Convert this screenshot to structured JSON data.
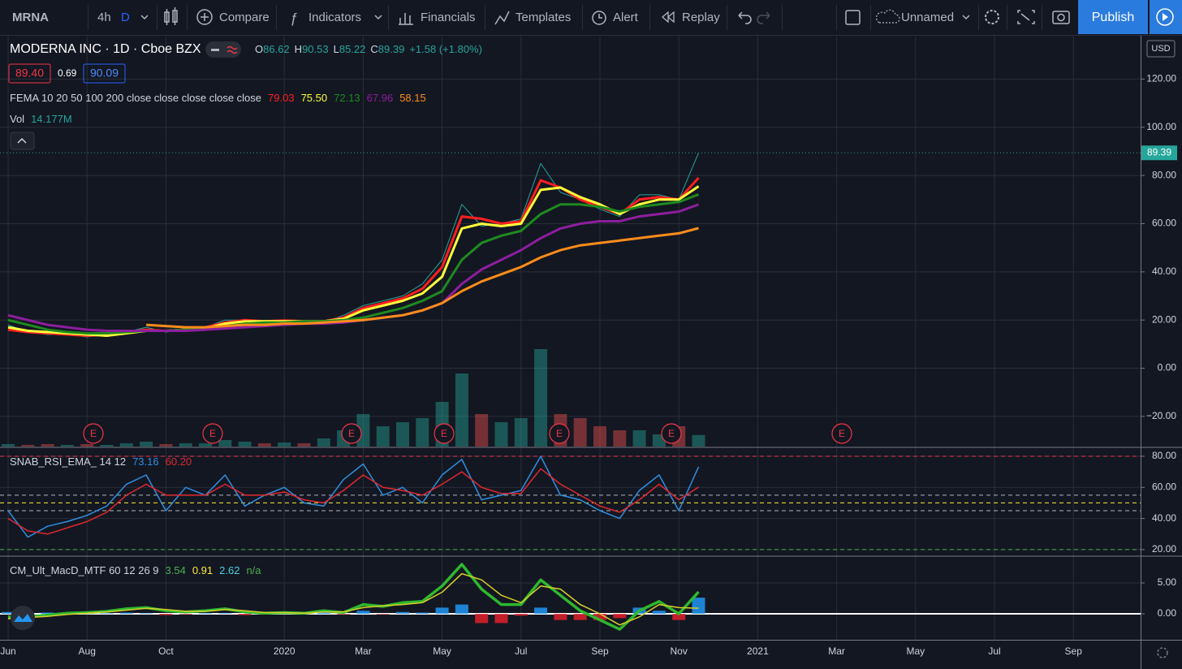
{
  "toolbar": {
    "symbol": "MRNA",
    "intervals": [
      "4h",
      "D"
    ],
    "buttons": [
      "Compare",
      "Indicators",
      "Financials",
      "Templates",
      "Alert",
      "Replay"
    ],
    "layout_name": "Unnamed",
    "publish": "Publish"
  },
  "legend": {
    "title": "MODERNA INC · 1D · Cboe BZX",
    "ohlc_keys": [
      "O",
      "H",
      "L",
      "C"
    ],
    "ohlc_values": [
      "86.62",
      "90.53",
      "85.22",
      "89.39"
    ],
    "change": "+1.58 (+1.80%)",
    "bid": "89.40",
    "spread": "0.69",
    "ask": "90.09",
    "ema_label": "FEMA 10 20 50 100 200 close close close close close",
    "ema_values": [
      "79.03",
      "75.50",
      "72.13",
      "67.96",
      "58.15"
    ],
    "vol_label": "Vol",
    "vol_value": "14.177M",
    "rsi_label": "SNAB_RSI_EMA_ 14 12",
    "rsi_values": [
      "73.16",
      "60.20"
    ],
    "macd_label": "CM_Ult_MacD_MTF 60 12 26 9",
    "macd_values": [
      "3.54",
      "0.91",
      "2.62",
      "n/a"
    ]
  },
  "currency": "USD",
  "earnings": [
    "E",
    "E",
    "E",
    "E",
    "E",
    "E",
    "E"
  ],
  "chart_data": [
    {
      "type": "line",
      "categories": [
        "Jun",
        null,
        null,
        null,
        "Aug",
        null,
        null,
        null,
        "Oct",
        null,
        null,
        null,
        null,
        null,
        "2020",
        null,
        null,
        null,
        "Mar",
        null,
        null,
        null,
        "May",
        null,
        null,
        null,
        "Jul",
        null,
        null,
        null,
        "Sep",
        null,
        null,
        null,
        "Nov",
        null,
        null,
        null,
        "2021",
        null,
        null,
        null,
        "Mar",
        null,
        null,
        null,
        "May",
        null,
        null,
        null,
        "Jul",
        null,
        null,
        null,
        "Sep"
      ],
      "ylim": [
        -32.5,
        138
      ],
      "yticks": [
        {
          "value": 120,
          "label": "120.00"
        },
        {
          "value": 100,
          "label": "100.00"
        },
        {
          "value": 80,
          "label": "80.00"
        },
        {
          "value": 60,
          "label": "60.00"
        },
        {
          "value": 40,
          "label": "40.00"
        },
        {
          "value": 20,
          "label": "20.00"
        },
        {
          "value": 0,
          "label": "0.00"
        },
        {
          "value": -20,
          "label": "−20.00"
        }
      ],
      "grid": true,
      "series": [
        {
          "color": "#26a69a",
          "width": 1,
          "values": [
            18,
            15,
            14,
            14,
            13,
            14,
            15,
            17,
            15,
            16,
            17,
            20,
            20,
            19,
            20,
            19,
            19,
            22,
            26,
            28,
            30,
            35,
            45,
            68,
            59,
            60,
            62,
            85,
            73,
            70,
            66,
            63,
            72,
            72,
            70,
            89.39,
            null,
            null,
            null,
            null,
            null,
            null,
            null,
            null,
            null,
            null,
            null,
            null,
            null,
            null,
            null,
            null,
            null,
            null,
            null
          ]
        },
        {
          "color": "#ff1f1f",
          "width": 3,
          "values": [
            16,
            15,
            14.5,
            14,
            13.5,
            14,
            15,
            16,
            15.5,
            16,
            17,
            19,
            20,
            19.5,
            19.8,
            19.5,
            19.5,
            21,
            25,
            27,
            29,
            33,
            42,
            63,
            62,
            60,
            61,
            78,
            75,
            70,
            67,
            64,
            70,
            71,
            70,
            79.03,
            null,
            null,
            null,
            null,
            null,
            null,
            null,
            null,
            null,
            null,
            null,
            null,
            null,
            null,
            null,
            null,
            null,
            null,
            null
          ]
        },
        {
          "color": "#ffff3b",
          "width": 3,
          "values": [
            17,
            15.5,
            15,
            14.5,
            14,
            13.5,
            14.5,
            15.5,
            15.5,
            16,
            16.5,
            18.5,
            19.5,
            19.5,
            19.5,
            19.5,
            19.5,
            20.5,
            24,
            26,
            28,
            31,
            38,
            58,
            60,
            59,
            60,
            74,
            75,
            71,
            68,
            64,
            68,
            70,
            70,
            75.5,
            null,
            null,
            null,
            null,
            null,
            null,
            null,
            null,
            null,
            null,
            null,
            null,
            null,
            null,
            null,
            null,
            null,
            null,
            null
          ]
        },
        {
          "color": "#1e8a1e",
          "width": 3,
          "values": [
            20,
            18,
            16,
            15,
            14.5,
            14.5,
            15,
            15.5,
            15.5,
            16,
            16.5,
            17.5,
            18.5,
            19,
            19,
            19.5,
            19.5,
            20,
            21,
            23,
            25,
            28,
            32,
            45,
            52,
            55,
            57,
            64,
            68,
            68,
            67,
            65,
            67,
            68,
            69,
            72.13,
            null,
            null,
            null,
            null,
            null,
            null,
            null,
            null,
            null,
            null,
            null,
            null,
            null,
            null,
            null,
            null,
            null,
            null,
            null
          ]
        },
        {
          "color": "#8e1e9e",
          "width": 3,
          "values": [
            22,
            20,
            18,
            17,
            16,
            15.5,
            15.5,
            15.5,
            15.5,
            15.5,
            16,
            16.5,
            17,
            17.5,
            18,
            18.5,
            18.5,
            19,
            20,
            21,
            22,
            24,
            27,
            35,
            41,
            45,
            49,
            54,
            58,
            60,
            61,
            61,
            63,
            64,
            65,
            67.96,
            null,
            null,
            null,
            null,
            null,
            null,
            null,
            null,
            null,
            null,
            null,
            null,
            null,
            null,
            null,
            null,
            null,
            null,
            null
          ]
        },
        {
          "color": "#ff8c1a",
          "width": 3,
          "values": [
            null,
            null,
            null,
            null,
            null,
            null,
            null,
            18,
            17.5,
            17,
            17,
            17.5,
            18,
            18,
            18.5,
            18.5,
            19,
            19.5,
            20,
            21,
            22,
            24,
            27,
            32,
            36,
            39,
            42,
            46,
            49,
            51,
            52,
            53,
            54,
            55,
            56,
            58.15,
            null,
            null,
            null,
            null,
            null,
            null,
            null,
            null,
            null,
            null,
            null,
            null,
            null,
            null,
            null,
            null,
            null,
            null,
            null
          ]
        }
      ]
    },
    {
      "type": "bar",
      "ylim": [
        0,
        220
      ],
      "up_color": "#26a69a",
      "down_color": "#ef5350",
      "values": [
        3,
        2,
        3,
        2,
        3,
        2,
        4,
        6,
        3,
        4,
        4,
        8,
        6,
        4,
        5,
        4,
        10,
        20,
        40,
        25,
        30,
        35,
        55,
        90,
        40,
        30,
        35,
        120,
        40,
        35,
        25,
        20,
        20,
        15,
        25,
        14.177,
        null,
        null,
        null,
        null,
        null,
        null,
        null,
        null,
        null,
        null,
        null,
        null,
        null,
        null,
        null,
        null,
        null,
        null,
        null
      ]
    },
    {
      "type": "line",
      "ylim": [
        16.3,
        85.2
      ],
      "yticks": [
        {
          "value": 80,
          "label": "80.00"
        },
        {
          "value": 60,
          "label": "60.00"
        },
        {
          "value": 40,
          "label": "40.00"
        },
        {
          "value": 20,
          "label": "20.00"
        }
      ],
      "grid": true,
      "hlines": [
        {
          "value": 80,
          "color": "#f23645"
        },
        {
          "value": 55,
          "color": "#b2b5be"
        },
        {
          "value": 50,
          "color": "#ffeb3b"
        },
        {
          "value": 45,
          "color": "#b2b5be"
        },
        {
          "value": 20,
          "color": "#4caf50"
        }
      ],
      "series": [
        {
          "color": "#2f8fe0",
          "width": 1.5,
          "values": [
            45,
            28,
            35,
            38,
            42,
            48,
            62,
            68,
            45,
            60,
            55,
            68,
            48,
            55,
            60,
            50,
            48,
            65,
            75,
            55,
            60,
            50,
            68,
            78,
            52,
            55,
            58,
            80,
            55,
            52,
            45,
            40,
            58,
            68,
            45,
            73.16,
            null,
            null,
            null,
            null,
            null,
            null,
            null,
            null,
            null,
            null,
            null,
            null,
            null,
            null,
            null,
            null,
            null,
            null,
            null
          ]
        },
        {
          "color": "#e0282e",
          "width": 1.5,
          "values": [
            40,
            32,
            30,
            34,
            38,
            44,
            55,
            62,
            55,
            55,
            55,
            62,
            55,
            55,
            57,
            52,
            50,
            58,
            68,
            60,
            58,
            55,
            62,
            70,
            60,
            56,
            56,
            72,
            62,
            55,
            48,
            44,
            52,
            62,
            52,
            60.2,
            null,
            null,
            null,
            null,
            null,
            null,
            null,
            null,
            null,
            null,
            null,
            null,
            null,
            null,
            null,
            null,
            null,
            null,
            null
          ]
        }
      ]
    },
    {
      "type": "line",
      "ylim": [
        -4.2,
        9.2
      ],
      "yticks": [
        {
          "value": 5,
          "label": "5.00"
        },
        {
          "value": 0,
          "label": "0.00"
        }
      ],
      "grid": true,
      "hlines": [
        {
          "value": 0,
          "color": "#ffffff"
        }
      ],
      "histogram": {
        "up_color": "#2196f3",
        "down_color": "#e0202a",
        "values": [
          0.3,
          0.1,
          0.2,
          0.2,
          0.1,
          0.1,
          0.2,
          0.1,
          -0.2,
          -0.1,
          0.1,
          0.1,
          -0.2,
          -0.1,
          0,
          0,
          0.2,
          -0.1,
          0.5,
          -0.1,
          0.3,
          0.2,
          1,
          1.5,
          -1.5,
          -1.5,
          -0.3,
          1,
          -1,
          -1,
          -1,
          -0.7,
          1,
          0.5,
          -1,
          2.62,
          null,
          null,
          null,
          null,
          null,
          null,
          null,
          null,
          null,
          null,
          null,
          null,
          null,
          null,
          null,
          null,
          null,
          null,
          null
        ]
      },
      "series": [
        {
          "color": "#2eb82e",
          "width": 3.5,
          "values": [
            -0.5,
            -0.5,
            -0.2,
            0.1,
            0.2,
            0.4,
            0.8,
            1,
            0.5,
            0.3,
            0.5,
            0.8,
            0.3,
            0.1,
            0.2,
            0.1,
            0.5,
            0.2,
            1.5,
            1.2,
            1.8,
            2,
            4.5,
            8,
            4,
            1.5,
            1.5,
            5.5,
            3,
            0.5,
            -1,
            -2.5,
            0.5,
            2,
            0,
            3.54,
            null,
            null,
            null,
            null,
            null,
            null,
            null,
            null,
            null,
            null,
            null,
            null,
            null,
            null,
            null,
            null,
            null,
            null,
            null
          ]
        },
        {
          "color": "#d8d02a",
          "width": 1.5,
          "values": [
            -0.8,
            -0.6,
            -0.4,
            -0.1,
            0.1,
            0.3,
            0.6,
            0.9,
            0.7,
            0.4,
            0.4,
            0.7,
            0.5,
            0.2,
            0.2,
            0.1,
            0.3,
            0.3,
            1,
            1.3,
            1.5,
            1.8,
            3.5,
            6.5,
            5.5,
            3,
            1.8,
            4.5,
            4,
            1.5,
            0,
            -1.8,
            -0.5,
            1.5,
            1,
            0.91,
            null,
            null,
            null,
            null,
            null,
            null,
            null,
            null,
            null,
            null,
            null,
            null,
            null,
            null,
            null,
            null,
            null,
            null,
            null
          ]
        }
      ]
    }
  ]
}
